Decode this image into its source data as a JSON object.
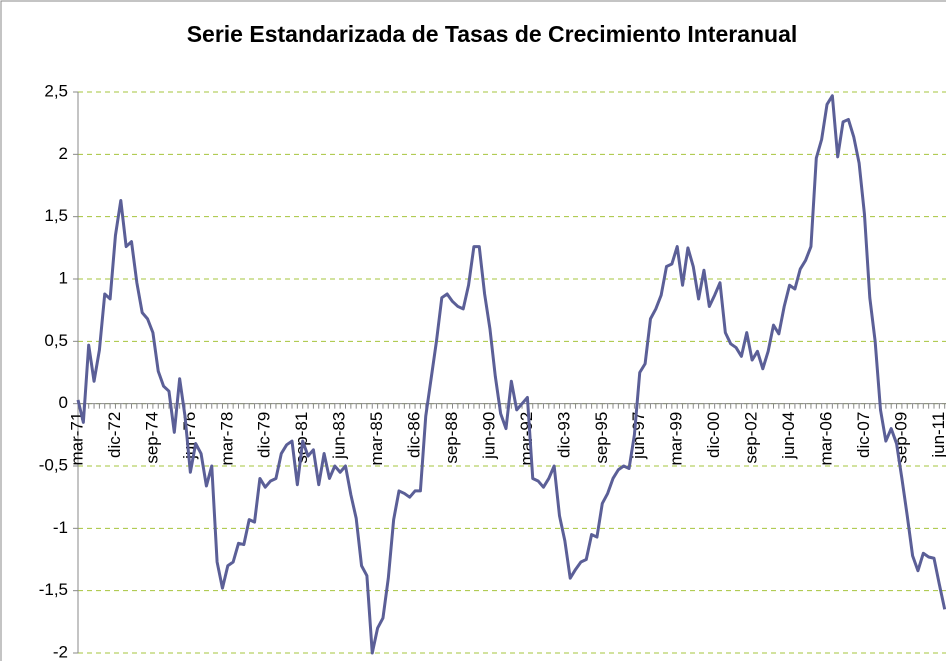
{
  "chart_data": {
    "type": "line",
    "title": "Serie Estandarizada de Tasas de Crecimiento Interanual",
    "categories": [
      "mar-71",
      null,
      null,
      null,
      null,
      null,
      null,
      "dic-72",
      null,
      null,
      null,
      null,
      null,
      null,
      "sep-74",
      null,
      null,
      null,
      null,
      null,
      null,
      "jun-76",
      null,
      null,
      null,
      null,
      null,
      null,
      "mar-78",
      null,
      null,
      null,
      null,
      null,
      null,
      "dic-79",
      null,
      null,
      null,
      null,
      null,
      null,
      "sep-81",
      null,
      null,
      null,
      null,
      null,
      null,
      "jun-83",
      null,
      null,
      null,
      null,
      null,
      null,
      "mar-85",
      null,
      null,
      null,
      null,
      null,
      null,
      "dic-86",
      null,
      null,
      null,
      null,
      null,
      null,
      "sep-88",
      null,
      null,
      null,
      null,
      null,
      null,
      "jun-90",
      null,
      null,
      null,
      null,
      null,
      null,
      "mar-92",
      null,
      null,
      null,
      null,
      null,
      null,
      "dic-93",
      null,
      null,
      null,
      null,
      null,
      null,
      "sep-95",
      null,
      null,
      null,
      null,
      null,
      null,
      "jun-97",
      null,
      null,
      null,
      null,
      null,
      null,
      "mar-99",
      null,
      null,
      null,
      null,
      null,
      null,
      "dic-00",
      null,
      null,
      null,
      null,
      null,
      null,
      "sep-02",
      null,
      null,
      null,
      null,
      null,
      null,
      "jun-04",
      null,
      null,
      null,
      null,
      null,
      null,
      "mar-06",
      null,
      null,
      null,
      null,
      null,
      null,
      "dic-07",
      null,
      null,
      null,
      null,
      null,
      null,
      "sep-09",
      null,
      null,
      null,
      null,
      null,
      null,
      "jun-11",
      null
    ],
    "series": [
      {
        "color": "#5b5f97",
        "values": [
          0.03,
          -0.15,
          0.47,
          0.18,
          0.43,
          0.88,
          0.84,
          1.35,
          1.63,
          1.26,
          1.3,
          0.97,
          0.73,
          0.68,
          0.57,
          0.26,
          0.14,
          0.1,
          -0.23,
          0.2,
          -0.1,
          -0.55,
          -0.32,
          -0.4,
          -0.66,
          -0.5,
          -1.27,
          -1.48,
          -1.3,
          -1.27,
          -1.12,
          -1.13,
          -0.93,
          -0.95,
          -0.6,
          -0.67,
          -0.62,
          -0.6,
          -0.4,
          -0.33,
          -0.3,
          -0.65,
          -0.3,
          -0.42,
          -0.37,
          -0.65,
          -0.4,
          -0.6,
          -0.5,
          -0.55,
          -0.5,
          -0.73,
          -0.92,
          -1.3,
          -1.38,
          -2.0,
          -1.8,
          -1.72,
          -1.4,
          -0.93,
          -0.7,
          -0.72,
          -0.75,
          -0.7,
          -0.7,
          -0.1,
          0.2,
          0.5,
          0.85,
          0.88,
          0.82,
          0.78,
          0.76,
          0.95,
          1.26,
          1.26,
          0.88,
          0.6,
          0.22,
          -0.08,
          -0.2,
          0.18,
          -0.05,
          0.0,
          0.05,
          -0.6,
          -0.62,
          -0.67,
          -0.6,
          -0.5,
          -0.9,
          -1.1,
          -1.4,
          -1.33,
          -1.27,
          -1.25,
          -1.05,
          -1.07,
          -0.8,
          -0.72,
          -0.6,
          -0.53,
          -0.5,
          -0.52,
          -0.25,
          0.25,
          0.32,
          0.68,
          0.76,
          0.87,
          1.1,
          1.12,
          1.26,
          0.95,
          1.25,
          1.1,
          0.84,
          1.07,
          0.78,
          0.87,
          0.97,
          0.57,
          0.48,
          0.45,
          0.38,
          0.57,
          0.35,
          0.42,
          0.28,
          0.42,
          0.63,
          0.56,
          0.78,
          0.95,
          0.92,
          1.08,
          1.15,
          1.26,
          1.97,
          2.12,
          2.4,
          2.47,
          1.98,
          2.26,
          2.28,
          2.14,
          1.93,
          1.52,
          0.85,
          0.5,
          -0.05,
          -0.3,
          -0.2,
          -0.32,
          -0.6,
          -0.9,
          -1.22,
          -1.34,
          -1.2,
          -1.23,
          -1.24,
          -1.45,
          -1.65
        ]
      }
    ],
    "ylim": [
      -2,
      2.5
    ],
    "yticks": [
      -2,
      {
        "value": -1.5,
        "label": "-1,5"
      },
      -1,
      {
        "value": -0.5,
        "label": "-0,5"
      },
      0,
      {
        "value": 0.5,
        "label": "0,5"
      },
      1,
      {
        "value": 1.5,
        "label": "1,5"
      },
      2,
      {
        "value": 2.5,
        "label": "2,5"
      }
    ],
    "grid": true,
    "grid_color": "#a6c43c"
  }
}
